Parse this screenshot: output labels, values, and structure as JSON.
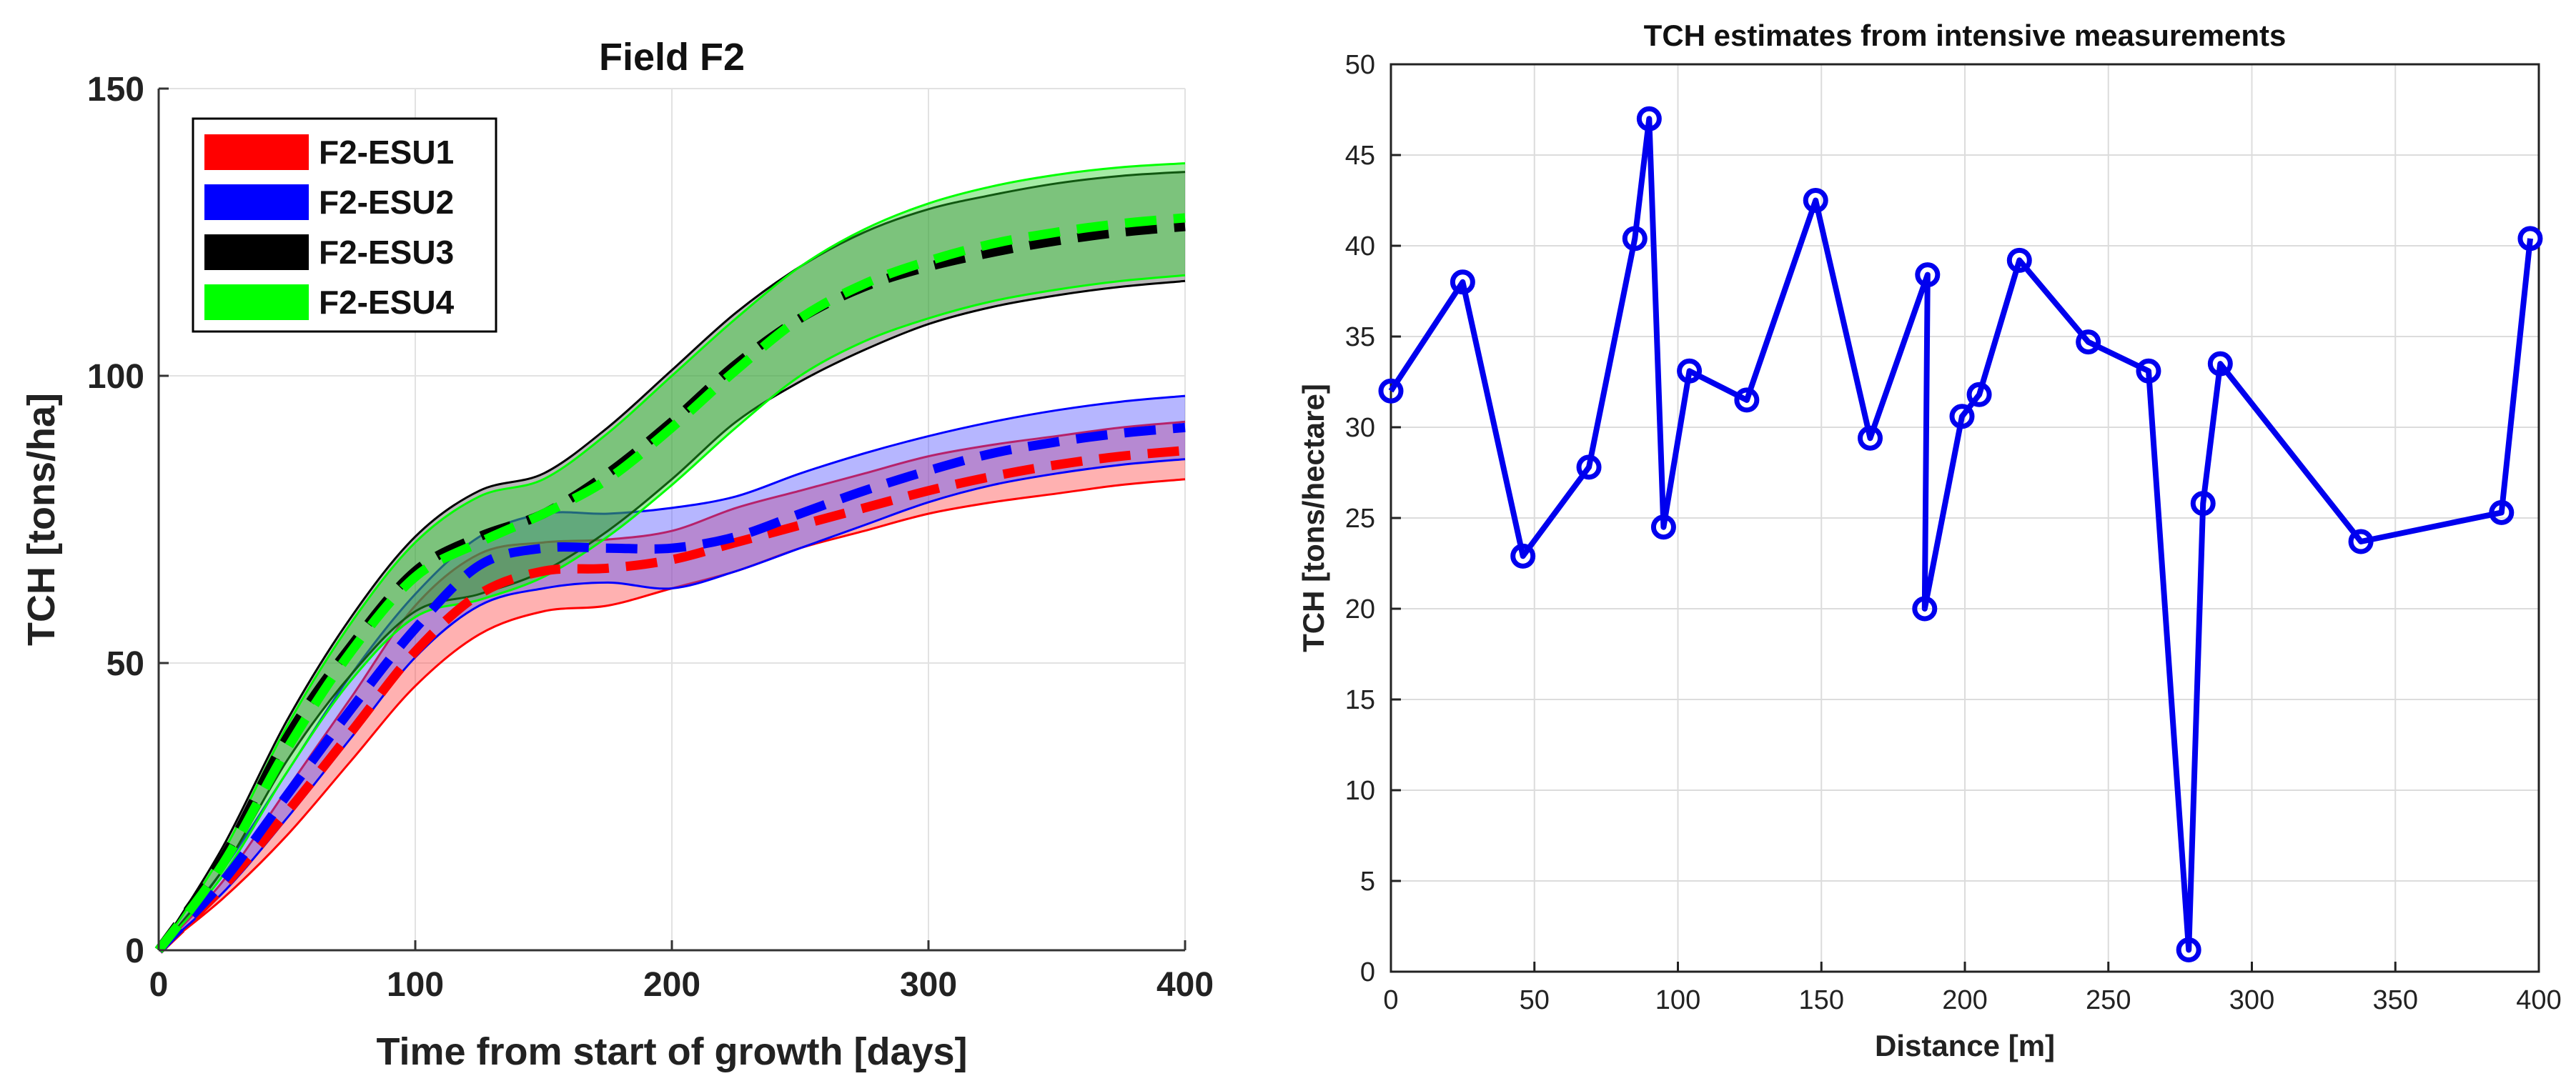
{
  "chart_data": [
    {
      "type": "line",
      "title": "Field F2",
      "xlabel": "Time from start of growth [days]",
      "ylabel": "TCH [tons/ha]",
      "xlim": [
        0,
        400
      ],
      "ylim": [
        0,
        150
      ],
      "xticks": [
        0,
        100,
        200,
        300,
        400
      ],
      "yticks": [
        0,
        50,
        100,
        150
      ],
      "grid": true,
      "legend_location": "top-left",
      "x": [
        0,
        25,
        50,
        75,
        100,
        125,
        150,
        175,
        200,
        225,
        250,
        275,
        300,
        325,
        350,
        375,
        400
      ],
      "series": [
        {
          "name": "F2-ESU1",
          "color": "#ff0000",
          "mean": [
            0,
            11,
            24,
            38,
            52,
            62,
            66,
            66.5,
            68,
            71,
            74,
            77,
            80,
            82.5,
            84.5,
            86,
            87
          ],
          "lower": [
            0,
            9,
            20,
            33,
            46,
            55,
            59,
            60,
            63,
            66,
            70,
            73,
            76,
            78,
            79.5,
            81,
            82
          ],
          "upper": [
            0,
            12,
            28,
            44,
            60,
            69,
            71,
            71.5,
            73,
            77,
            80,
            83,
            86,
            88,
            89.5,
            91,
            92
          ]
        },
        {
          "name": "F2-ESU2",
          "color": "#0000ff",
          "mean": [
            0,
            12,
            27,
            42,
            56,
            67,
            70,
            70,
            70,
            72,
            76,
            80,
            83.5,
            86.5,
            88.5,
            90,
            91
          ],
          "lower": [
            0,
            10,
            23,
            37,
            51,
            60,
            63,
            64,
            63,
            66,
            70,
            74,
            78,
            81,
            83,
            84.5,
            85.5
          ],
          "upper": [
            0,
            14,
            31,
            48,
            62,
            72,
            76,
            76,
            77,
            79,
            83,
            86.5,
            89.5,
            92,
            94,
            95.5,
            96.5
          ]
        },
        {
          "name": "F2-ESU3",
          "color": "#000000",
          "mean": [
            0,
            16,
            37,
            53,
            66,
            72,
            76,
            83,
            92,
            102,
            110,
            115.5,
            119,
            121.5,
            123.5,
            125,
            126
          ],
          "lower": [
            0,
            14,
            33,
            48,
            59,
            62,
            66,
            73,
            82,
            92,
            99,
            104.5,
            109,
            112,
            114,
            115.5,
            116.5
          ],
          "upper": [
            0,
            18,
            40,
            58,
            72,
            80,
            83,
            91,
            101,
            111,
            119,
            125,
            129,
            131.5,
            133.5,
            134.8,
            135.5
          ]
        },
        {
          "name": "F2-ESU4",
          "color": "#00ff00",
          "mean": [
            0,
            15,
            35,
            52,
            65,
            71,
            76,
            82,
            91,
            101,
            110,
            116,
            120,
            123,
            125,
            126.5,
            127.5
          ],
          "lower": [
            0,
            13,
            31,
            47,
            58,
            61,
            65,
            72,
            81,
            91,
            100,
            106,
            110,
            113,
            115,
            116.5,
            117.5
          ],
          "upper": [
            0,
            17,
            39,
            57,
            71,
            79,
            82,
            90,
            100,
            110,
            119,
            125.5,
            130,
            133,
            135,
            136.3,
            137
          ]
        }
      ]
    },
    {
      "type": "line",
      "title": "TCH estimates from intensive measurements",
      "xlabel": "Distance [m]",
      "ylabel": "TCH [tons/hectare]",
      "xlim": [
        0,
        400
      ],
      "ylim": [
        0,
        50
      ],
      "xticks": [
        0,
        50,
        100,
        150,
        200,
        250,
        300,
        350,
        400
      ],
      "yticks": [
        0,
        5,
        10,
        15,
        20,
        25,
        30,
        35,
        40,
        45,
        50
      ],
      "grid": true,
      "marker": "circle",
      "color": "#0000ee",
      "x": [
        0,
        25,
        46,
        69,
        85,
        90,
        95,
        104,
        124,
        148,
        167,
        187,
        186,
        199,
        205,
        219,
        243,
        264,
        278,
        283,
        289,
        338,
        387,
        397
      ],
      "y": [
        32,
        38,
        22.9,
        27.8,
        40.4,
        47,
        24.5,
        33.1,
        31.5,
        42.5,
        29.4,
        38.4,
        20,
        30.6,
        31.8,
        39.2,
        34.7,
        33.1,
        1.2,
        25.8,
        33.5,
        23.7,
        25.3,
        40.4
      ]
    }
  ]
}
